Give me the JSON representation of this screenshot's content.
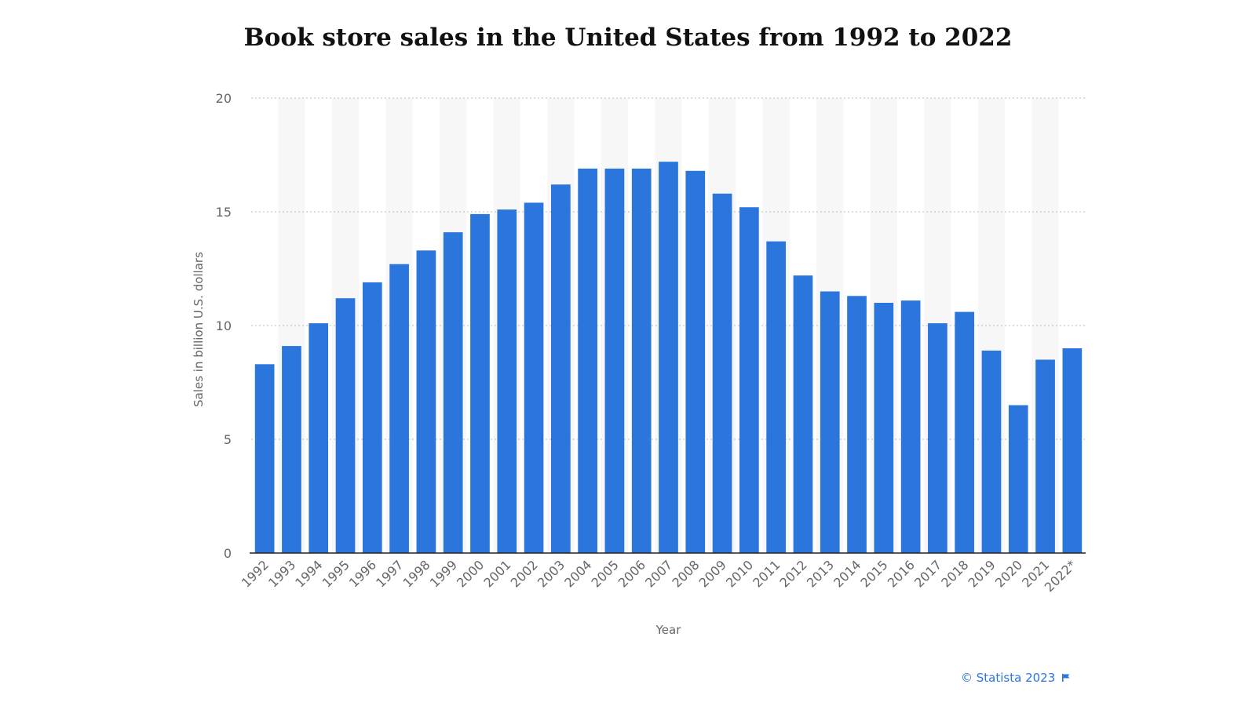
{
  "chart_data": {
    "type": "bar",
    "title": "Book store sales in the United States from 1992 to 2022",
    "xlabel": "Year",
    "ylabel": "Sales in billion U.S. dollars",
    "ylim": [
      0,
      20
    ],
    "yticks": [
      0,
      5,
      10,
      15,
      20
    ],
    "grid": true,
    "categories": [
      "1992",
      "1993",
      "1994",
      "1995",
      "1996",
      "1997",
      "1998",
      "1999",
      "2000",
      "2001",
      "2002",
      "2003",
      "2004",
      "2005",
      "2006",
      "2007",
      "2008",
      "2009",
      "2010",
      "2011",
      "2012",
      "2013",
      "2014",
      "2015",
      "2016",
      "2017",
      "2018",
      "2019",
      "2020",
      "2021",
      "2022*"
    ],
    "values": [
      8.3,
      9.1,
      10.1,
      11.2,
      11.9,
      12.7,
      13.3,
      14.1,
      14.9,
      15.1,
      15.4,
      16.2,
      16.9,
      16.9,
      16.9,
      17.2,
      16.8,
      15.8,
      15.2,
      13.7,
      12.2,
      11.5,
      11.3,
      11.0,
      11.1,
      10.1,
      10.6,
      8.9,
      6.5,
      8.5,
      9.0
    ],
    "bar_color": "#2b76dc"
  },
  "credit": {
    "text": "© Statista 2023",
    "icon": "flag-icon",
    "color": "#2a74dd"
  }
}
